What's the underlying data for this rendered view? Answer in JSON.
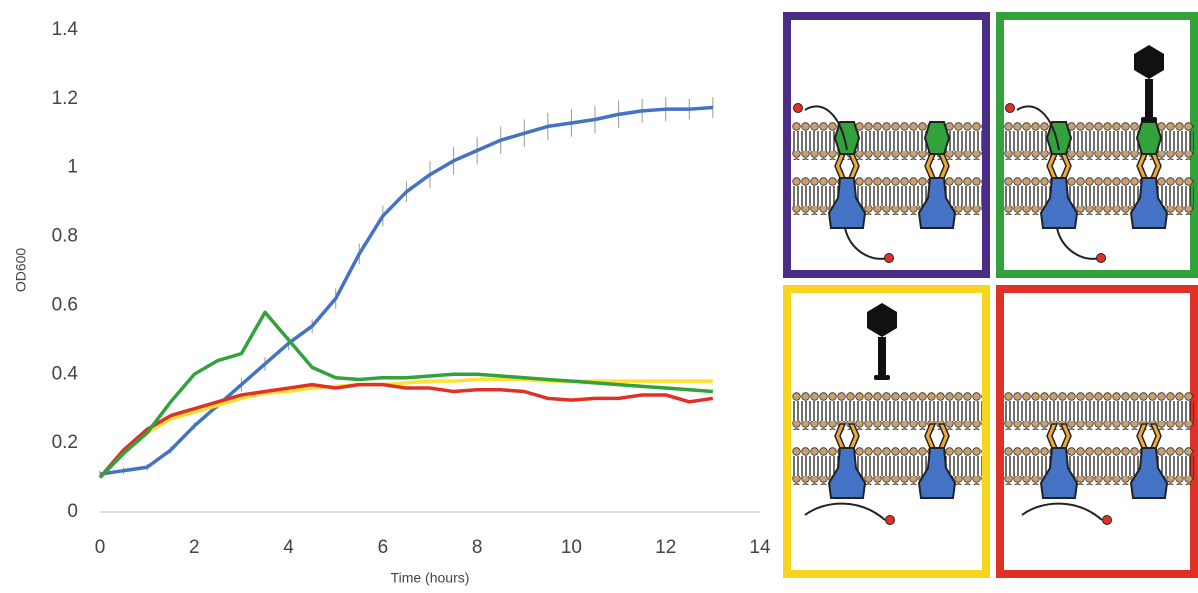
{
  "chart_data": {
    "type": "line",
    "x_label": "Time (hours)",
    "y_label": "OD600",
    "xlim": [
      0,
      14
    ],
    "xticks": [
      0,
      2,
      4,
      6,
      8,
      10,
      12,
      14
    ],
    "ylim": [
      0,
      1.4
    ],
    "yticks": [
      0,
      0.2,
      0.4,
      0.6,
      0.8,
      1,
      1.2,
      1.4
    ],
    "grid": false,
    "x": [
      0,
      0.5,
      1,
      1.5,
      2,
      2.5,
      3,
      3.5,
      4,
      4.5,
      5,
      5.5,
      6,
      6.5,
      7,
      7.5,
      8,
      8.5,
      9,
      9.5,
      10,
      10.5,
      11,
      11.5,
      12,
      12.5,
      13
    ],
    "series": [
      {
        "color": "#4472c4",
        "values": [
          0.11,
          0.12,
          0.13,
          0.18,
          0.25,
          0.31,
          0.37,
          0.43,
          0.49,
          0.54,
          0.62,
          0.75,
          0.86,
          0.93,
          0.98,
          1.02,
          1.05,
          1.08,
          1.1,
          1.12,
          1.13,
          1.14,
          1.155,
          1.165,
          1.17,
          1.17,
          1.175
        ],
        "errors": [
          0.01,
          0.01,
          0.01,
          0.01,
          0.01,
          0.01,
          0.02,
          0.02,
          0.02,
          0.02,
          0.03,
          0.03,
          0.03,
          0.03,
          0.04,
          0.04,
          0.04,
          0.04,
          0.04,
          0.04,
          0.04,
          0.04,
          0.04,
          0.035,
          0.035,
          0.03,
          0.03
        ]
      },
      {
        "color": "#ffe135",
        "values": [
          0.1,
          0.18,
          0.23,
          0.27,
          0.29,
          0.31,
          0.33,
          0.345,
          0.35,
          0.36,
          0.365,
          0.37,
          0.37,
          0.375,
          0.38,
          0.38,
          0.385,
          0.385,
          0.385,
          0.38,
          0.38,
          0.38,
          0.38,
          0.38,
          0.38,
          0.38,
          0.38
        ]
      },
      {
        "color": "#e03127",
        "values": [
          0.1,
          0.18,
          0.24,
          0.28,
          0.3,
          0.32,
          0.34,
          0.35,
          0.36,
          0.37,
          0.36,
          0.37,
          0.37,
          0.36,
          0.36,
          0.35,
          0.355,
          0.355,
          0.35,
          0.33,
          0.325,
          0.33,
          0.33,
          0.34,
          0.34,
          0.32,
          0.33
        ]
      },
      {
        "color": "#33a23d",
        "values": [
          0.1,
          0.17,
          0.23,
          0.32,
          0.4,
          0.44,
          0.46,
          0.58,
          0.5,
          0.42,
          0.39,
          0.385,
          0.39,
          0.39,
          0.395,
          0.4,
          0.4,
          0.395,
          0.39,
          0.385,
          0.38,
          0.375,
          0.37,
          0.365,
          0.36,
          0.355,
          0.35
        ]
      }
    ]
  }
}
